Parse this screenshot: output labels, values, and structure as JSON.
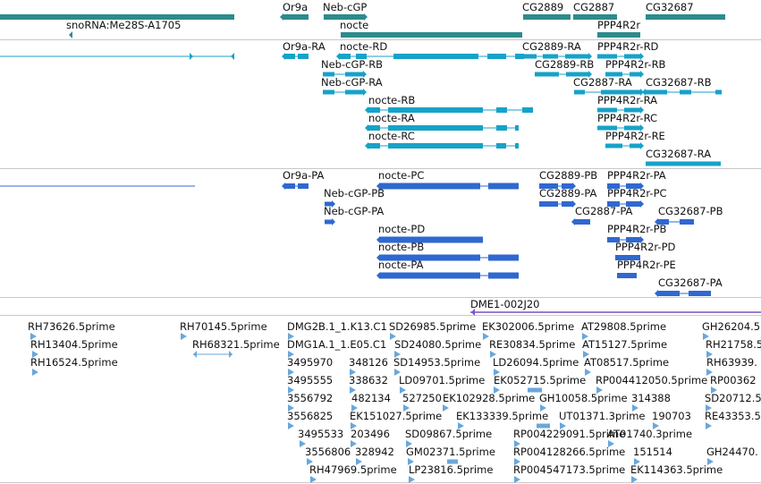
{
  "colors": {
    "gene": "#2e8b8b",
    "rna": "#17a2c8",
    "protein": "#2f68d0",
    "clone": "#7d4fc6",
    "est": "#6aa7db"
  },
  "genes_track": [
    {
      "label": "snoRNA:Me28S-A1705"
    },
    {
      "label": "Or9a"
    },
    {
      "label": "Neb-cGP"
    },
    {
      "label": "nocte"
    },
    {
      "label": "CG2889"
    },
    {
      "label": "CG2887"
    },
    {
      "label": "CG32687"
    },
    {
      "label": "PPP4R2r"
    }
  ],
  "transcripts_track": [
    {
      "label": "Or9a-RA"
    },
    {
      "label": "nocte-RD"
    },
    {
      "label": "Neb-cGP-RB"
    },
    {
      "label": "Neb-cGP-RA"
    },
    {
      "label": "nocte-RB"
    },
    {
      "label": "nocte-RA"
    },
    {
      "label": "nocte-RC"
    },
    {
      "label": "CG2889-RA"
    },
    {
      "label": "CG2889-RB"
    },
    {
      "label": "CG2887-RA"
    },
    {
      "label": "PPP4R2r-RD"
    },
    {
      "label": "PPP4R2r-RB"
    },
    {
      "label": "CG32687-RB"
    },
    {
      "label": "PPP4R2r-RA"
    },
    {
      "label": "PPP4R2r-RC"
    },
    {
      "label": "PPP4R2r-RE"
    },
    {
      "label": "CG32687-RA"
    }
  ],
  "proteins_track": [
    {
      "label": "Or9a-PA"
    },
    {
      "label": "nocte-PC"
    },
    {
      "label": "Neb-cGP-PB"
    },
    {
      "label": "Neb-cGP-PA"
    },
    {
      "label": "nocte-PD"
    },
    {
      "label": "nocte-PB"
    },
    {
      "label": "nocte-PA"
    },
    {
      "label": "CG2889-PB"
    },
    {
      "label": "CG2889-PA"
    },
    {
      "label": "CG2887-PA"
    },
    {
      "label": "PPP4R2r-PA"
    },
    {
      "label": "PPP4R2r-PC"
    },
    {
      "label": "CG32687-PB"
    },
    {
      "label": "PPP4R2r-PB"
    },
    {
      "label": "PPP4R2r-PD"
    },
    {
      "label": "PPP4R2r-PE"
    },
    {
      "label": "CG32687-PA"
    }
  ],
  "clone_track": [
    {
      "label": "DME1-002J20"
    }
  ],
  "est_track": [
    {
      "label": "RH73626.5prime"
    },
    {
      "label": "RH13404.5prime"
    },
    {
      "label": "RH16524.5prime"
    },
    {
      "label": "RH70145.5prime"
    },
    {
      "label": "RH68321.5prime"
    },
    {
      "label": "DMG2B.1_1.K13.C1"
    },
    {
      "label": "DMG1A.1_1.E05.C1"
    },
    {
      "label": "3495970"
    },
    {
      "label": "3495555"
    },
    {
      "label": "3556792"
    },
    {
      "label": "3556825"
    },
    {
      "label": "3495533"
    },
    {
      "label": "3556806"
    },
    {
      "label": "RH47969.5prime"
    },
    {
      "label": "348126"
    },
    {
      "label": "338632"
    },
    {
      "label": "482134"
    },
    {
      "label": "EK151027.5prime"
    },
    {
      "label": "203496"
    },
    {
      "label": "328942"
    },
    {
      "label": "SD26985.5prime"
    },
    {
      "label": "SD24080.5prime"
    },
    {
      "label": "SD14953.5prime"
    },
    {
      "label": "LD09701.5prime"
    },
    {
      "label": "527250"
    },
    {
      "label": "SD09867.5prime"
    },
    {
      "label": "GM02371.5prime"
    },
    {
      "label": "LP23816.5prime"
    },
    {
      "label": "EK302006.5prime"
    },
    {
      "label": "RE30834.5prime"
    },
    {
      "label": "LD26094.5prime"
    },
    {
      "label": "EK052715.5prime"
    },
    {
      "label": "EK102928.5prime"
    },
    {
      "label": "EK133339.5prime"
    },
    {
      "label": "RP004229091.5prime"
    },
    {
      "label": "RP004128266.5prime"
    },
    {
      "label": "RP004547173.5prime"
    },
    {
      "label": "GH10058.5prime"
    },
    {
      "label": "UT01371.3prime"
    },
    {
      "label": "AT29808.5prime"
    },
    {
      "label": "AT15127.5prime"
    },
    {
      "label": "AT08517.5prime"
    },
    {
      "label": "RP004412050.5prime"
    },
    {
      "label": "314388"
    },
    {
      "label": "190703"
    },
    {
      "label": "AT01740.3prime"
    },
    {
      "label": "151514"
    },
    {
      "label": "EK114363.5prime"
    },
    {
      "label": "GH26204.5"
    },
    {
      "label": "RH21758.5"
    },
    {
      "label": "RH63939."
    },
    {
      "label": "RP00362"
    },
    {
      "label": "SD20712.5"
    },
    {
      "label": "RE43353.5"
    },
    {
      "label": "GH24470."
    }
  ]
}
